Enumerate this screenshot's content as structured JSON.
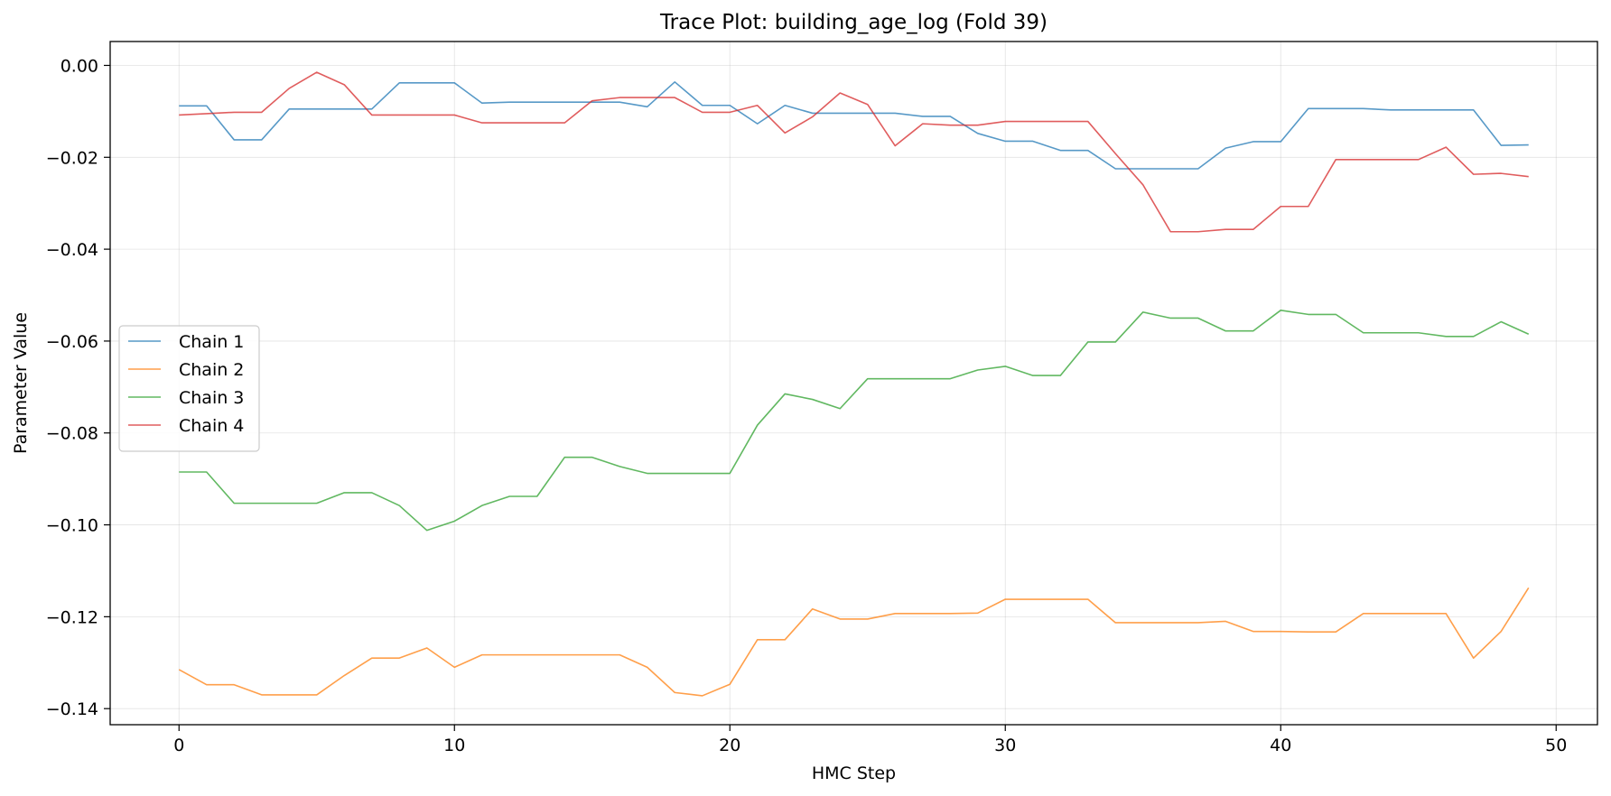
{
  "chart_data": {
    "type": "line",
    "title": "Trace Plot: building_age_log (Fold 39)",
    "xlabel": "HMC Step",
    "ylabel": "Parameter Value",
    "xlim": [
      -2.5,
      51.5
    ],
    "ylim": [
      -0.1435,
      0.0052
    ],
    "xticks": [
      0,
      10,
      20,
      30,
      40,
      50
    ],
    "yticks": [
      0.0,
      -0.02,
      -0.04,
      -0.06,
      -0.08,
      -0.1,
      -0.12,
      -0.14
    ],
    "ytick_labels": [
      "0.00",
      "−0.02",
      "−0.04",
      "−0.06",
      "−0.08",
      "−0.10",
      "−0.12",
      "−0.14"
    ],
    "grid": true,
    "legend_position": "center-left",
    "series": [
      {
        "name": "Chain 1",
        "color": "#1f77b4",
        "values": [
          -0.0088,
          -0.0088,
          -0.0162,
          -0.0162,
          -0.0095,
          -0.0095,
          -0.0095,
          -0.0095,
          -0.0038,
          -0.0038,
          -0.0038,
          -0.0082,
          -0.008,
          -0.008,
          -0.008,
          -0.008,
          -0.008,
          -0.009,
          -0.0036,
          -0.0087,
          -0.0087,
          -0.0127,
          -0.0087,
          -0.0104,
          -0.0104,
          -0.0104,
          -0.0104,
          -0.0111,
          -0.0111,
          -0.0148,
          -0.0165,
          -0.0165,
          -0.0185,
          -0.0185,
          -0.0225,
          -0.0225,
          -0.0225,
          -0.0225,
          -0.018,
          -0.0166,
          -0.0166,
          -0.0094,
          -0.0094,
          -0.0094,
          -0.0097,
          -0.0097,
          -0.0097,
          -0.0097,
          -0.0174,
          -0.0173
        ]
      },
      {
        "name": "Chain 2",
        "color": "#ff7f0e",
        "values": [
          -0.1315,
          -0.1348,
          -0.1348,
          -0.137,
          -0.137,
          -0.137,
          -0.1328,
          -0.129,
          -0.129,
          -0.1268,
          -0.131,
          -0.1283,
          -0.1283,
          -0.1283,
          -0.1283,
          -0.1283,
          -0.1283,
          -0.131,
          -0.1365,
          -0.1372,
          -0.1347,
          -0.125,
          -0.125,
          -0.1183,
          -0.1205,
          -0.1205,
          -0.1193,
          -0.1193,
          -0.1193,
          -0.1192,
          -0.1162,
          -0.1162,
          -0.1162,
          -0.1162,
          -0.1213,
          -0.1213,
          -0.1213,
          -0.1213,
          -0.121,
          -0.1232,
          -0.1232,
          -0.1233,
          -0.1233,
          -0.1193,
          -0.1193,
          -0.1193,
          -0.1193,
          -0.129,
          -0.1232,
          -0.1137
        ]
      },
      {
        "name": "Chain 3",
        "color": "#2ca02c",
        "values": [
          -0.0885,
          -0.0885,
          -0.0953,
          -0.0953,
          -0.0953,
          -0.0953,
          -0.093,
          -0.093,
          -0.0958,
          -0.1012,
          -0.0992,
          -0.0958,
          -0.0938,
          -0.0938,
          -0.0853,
          -0.0853,
          -0.0873,
          -0.0888,
          -0.0888,
          -0.0888,
          -0.0888,
          -0.0783,
          -0.0715,
          -0.0727,
          -0.0747,
          -0.0682,
          -0.0682,
          -0.0682,
          -0.0682,
          -0.0663,
          -0.0655,
          -0.0675,
          -0.0675,
          -0.0602,
          -0.0602,
          -0.0537,
          -0.055,
          -0.055,
          -0.0578,
          -0.0578,
          -0.0533,
          -0.0542,
          -0.0542,
          -0.0582,
          -0.0582,
          -0.0582,
          -0.059,
          -0.059,
          -0.0558,
          -0.0585
        ]
      },
      {
        "name": "Chain 4",
        "color": "#d62728",
        "values": [
          -0.0108,
          -0.0105,
          -0.0102,
          -0.0102,
          -0.005,
          -0.0015,
          -0.0042,
          -0.0108,
          -0.0108,
          -0.0108,
          -0.0108,
          -0.0125,
          -0.0125,
          -0.0125,
          -0.0125,
          -0.0077,
          -0.007,
          -0.007,
          -0.007,
          -0.0102,
          -0.0102,
          -0.0087,
          -0.0147,
          -0.0112,
          -0.006,
          -0.0085,
          -0.0175,
          -0.0127,
          -0.013,
          -0.013,
          -0.0122,
          -0.0122,
          -0.0122,
          -0.0122,
          -0.0192,
          -0.026,
          -0.0362,
          -0.0362,
          -0.0357,
          -0.0357,
          -0.0307,
          -0.0307,
          -0.0205,
          -0.0205,
          -0.0205,
          -0.0205,
          -0.0178,
          -0.0237,
          -0.0235,
          -0.0242
        ]
      }
    ]
  }
}
